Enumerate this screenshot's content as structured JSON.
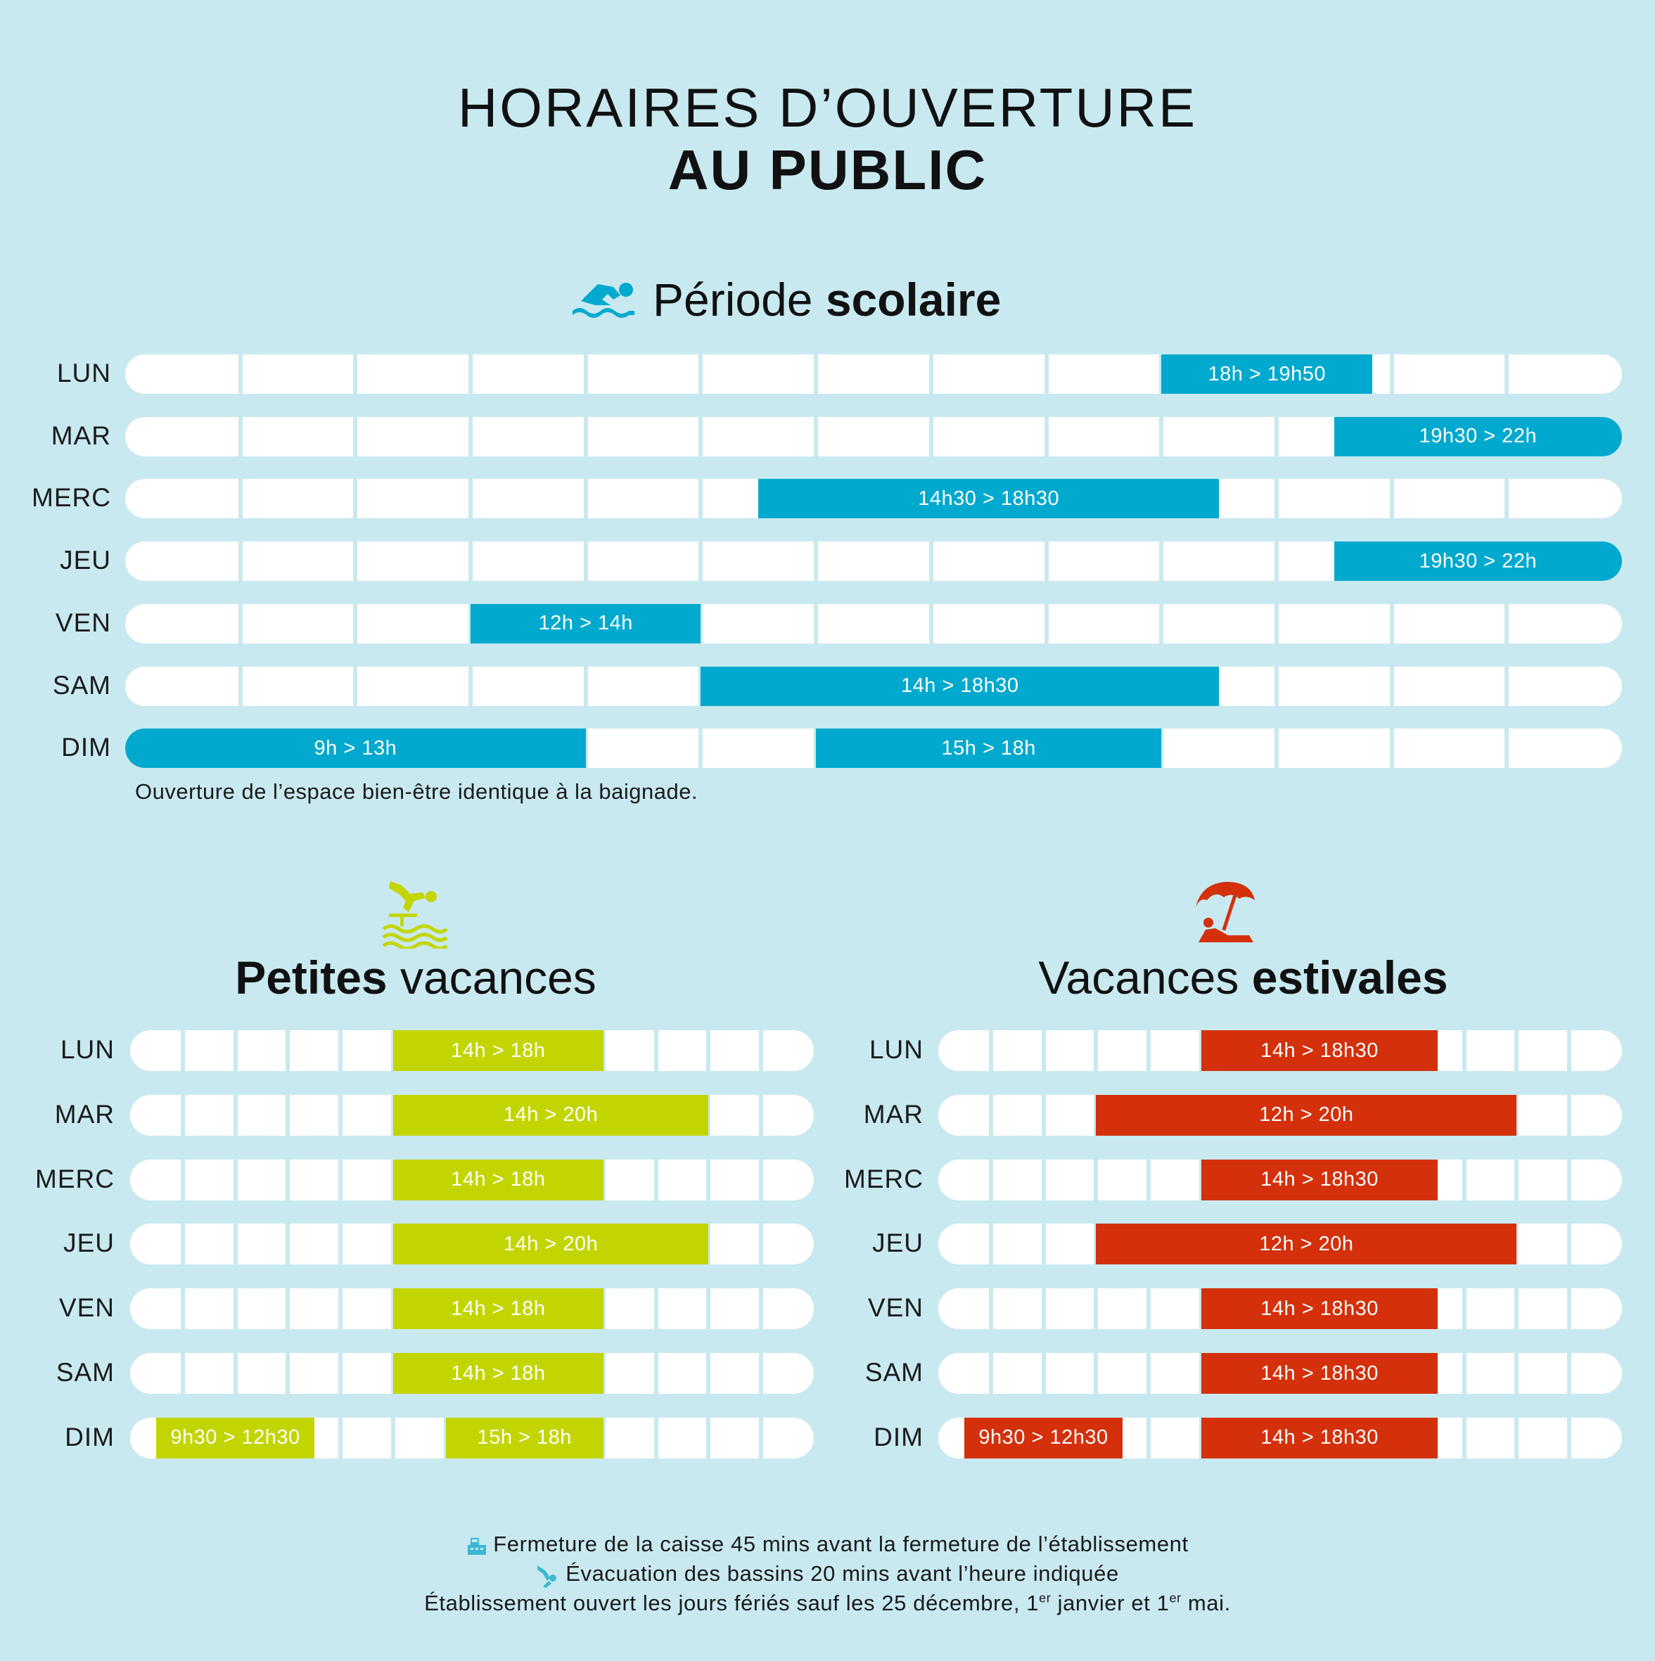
{
  "header": {
    "title_line1": "HORAIRES D’OUVERTURE",
    "title_line2": "AU PUBLIC"
  },
  "colors": {
    "background": "#c9e9f0",
    "scolaire": "#00a9cd",
    "petites": "#c3d500",
    "estivales": "#d3300b",
    "track": "#ffffff"
  },
  "scolaire": {
    "icon": "swimmer-icon",
    "title_regular": "Période ",
    "title_bold": "scolaire",
    "rows": [
      {
        "day": "LUN",
        "slots": [
          {
            "label": "18h > 19h50",
            "start": 18,
            "end": 19.833
          }
        ]
      },
      {
        "day": "MAR",
        "slots": [
          {
            "label": "19h30 > 22h",
            "start": 19.5,
            "end": 22
          }
        ]
      },
      {
        "day": "MERC",
        "slots": [
          {
            "label": "14h30 > 18h30",
            "start": 14.5,
            "end": 18.5
          }
        ]
      },
      {
        "day": "JEU",
        "slots": [
          {
            "label": "19h30 > 22h",
            "start": 19.5,
            "end": 22
          }
        ]
      },
      {
        "day": "VEN",
        "slots": [
          {
            "label": "12h > 14h",
            "start": 12,
            "end": 14
          }
        ]
      },
      {
        "day": "SAM",
        "slots": [
          {
            "label": "14h > 18h30",
            "start": 14,
            "end": 18.5
          }
        ]
      },
      {
        "day": "DIM",
        "slots": [
          {
            "label": "9h > 13h",
            "start": 9,
            "end": 13
          },
          {
            "label": "15h > 18h",
            "start": 15,
            "end": 18
          }
        ]
      }
    ],
    "note": "Ouverture de l’espace bien-être identique à la baignade."
  },
  "petites": {
    "icon": "diver-icon",
    "title_bold": "Petites",
    "title_regular": " vacances",
    "rows": [
      {
        "day": "LUN",
        "slots": [
          {
            "label": "14h > 18h",
            "start": 14,
            "end": 18
          }
        ]
      },
      {
        "day": "MAR",
        "slots": [
          {
            "label": "14h > 20h",
            "start": 14,
            "end": 20
          }
        ]
      },
      {
        "day": "MERC",
        "slots": [
          {
            "label": "14h > 18h",
            "start": 14,
            "end": 18
          }
        ]
      },
      {
        "day": "JEU",
        "slots": [
          {
            "label": "14h > 20h",
            "start": 14,
            "end": 20
          }
        ]
      },
      {
        "day": "VEN",
        "slots": [
          {
            "label": "14h > 18h",
            "start": 14,
            "end": 18
          }
        ]
      },
      {
        "day": "SAM",
        "slots": [
          {
            "label": "14h > 18h",
            "start": 14,
            "end": 18
          }
        ]
      },
      {
        "day": "DIM",
        "slots": [
          {
            "label": "9h30 > 12h30",
            "start": 9.5,
            "end": 12.5
          },
          {
            "label": "15h > 18h",
            "start": 15,
            "end": 18
          }
        ]
      }
    ]
  },
  "estivales": {
    "icon": "beach-umbrella-icon",
    "title_regular": "Vacances ",
    "title_bold": "estivales",
    "rows": [
      {
        "day": "LUN",
        "slots": [
          {
            "label": "14h > 18h30",
            "start": 14,
            "end": 18.5
          }
        ]
      },
      {
        "day": "MAR",
        "slots": [
          {
            "label": "12h > 20h",
            "start": 12,
            "end": 20
          }
        ]
      },
      {
        "day": "MERC",
        "slots": [
          {
            "label": "14h > 18h30",
            "start": 14,
            "end": 18.5
          }
        ]
      },
      {
        "day": "JEU",
        "slots": [
          {
            "label": "12h > 20h",
            "start": 12,
            "end": 20
          }
        ]
      },
      {
        "day": "VEN",
        "slots": [
          {
            "label": "14h > 18h30",
            "start": 14,
            "end": 18.5
          }
        ]
      },
      {
        "day": "SAM",
        "slots": [
          {
            "label": "14h > 18h30",
            "start": 14,
            "end": 18.5
          }
        ]
      },
      {
        "day": "DIM",
        "slots": [
          {
            "label": "9h30 > 12h30",
            "start": 9.5,
            "end": 12.5
          },
          {
            "label": "14h > 18h30",
            "start": 14,
            "end": 18.5
          }
        ]
      }
    ]
  },
  "footer": {
    "line1_icon": "cash-register-icon",
    "line1": "Fermeture de la caisse 45 mins avant la fermeture de l’établissement",
    "line2_icon": "swimmer-exit-icon",
    "line2": "Évacuation des bassins 20 mins avant l’heure indiquée",
    "line3_a": "Établissement ouvert les jours fériés sauf les 25 décembre, 1",
    "line3_sup1": "er",
    "line3_b": " janvier et 1",
    "line3_sup2": "er",
    "line3_c": " mai."
  }
}
